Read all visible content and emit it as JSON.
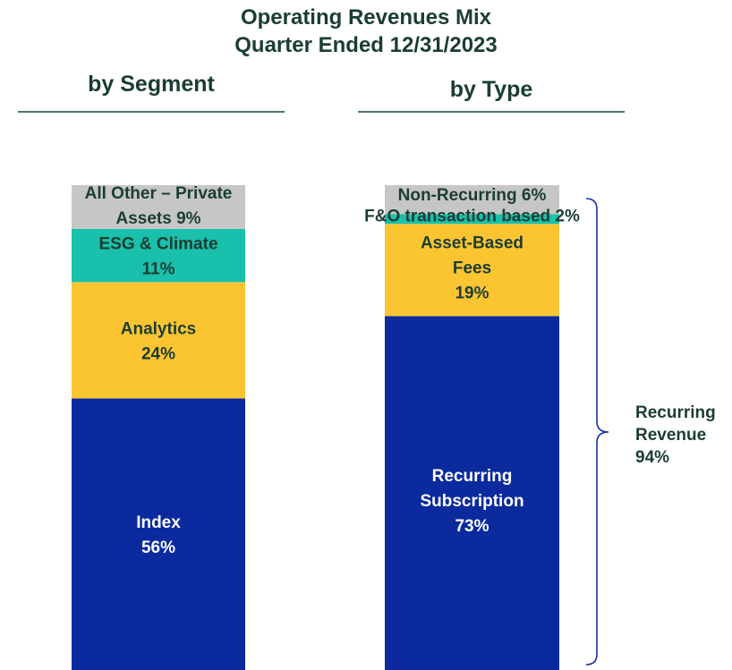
{
  "title": {
    "line1": "Operating Revenues Mix",
    "line2": "Quarter Ended 12/31/2023"
  },
  "panels": {
    "segment_heading": "by Segment",
    "type_heading": "by Type"
  },
  "brace_label": {
    "line1": "Recurring",
    "line2": "Revenue",
    "line3": "94%"
  },
  "colors": {
    "title_text": "#1b3d33",
    "rule": "#4f7565",
    "index": "#0a2a9e",
    "analytics": "#fbc531",
    "esg": "#19c0ab",
    "other": "#c6c6c6",
    "brace": "#1a2f9a"
  },
  "chart_data": [
    {
      "type": "bar",
      "stacked": true,
      "title": "by Segment",
      "unit": "%",
      "series": [
        {
          "name": "Index",
          "value": 56,
          "color": "#0a2a9e",
          "text_color": "#ffffff",
          "label_lines": [
            "Index",
            "56%"
          ]
        },
        {
          "name": "Analytics",
          "value": 24,
          "color": "#fbc531",
          "text_color": "#1b3d33",
          "label_lines": [
            "Analytics",
            "24%"
          ]
        },
        {
          "name": "ESG & Climate",
          "value": 11,
          "color": "#19c0ab",
          "text_color": "#1b3d33",
          "label_lines": [
            "ESG & Climate",
            "11%"
          ]
        },
        {
          "name": "All Other – Private Assets",
          "value": 9,
          "color": "#c6c6c6",
          "text_color": "#1b3d33",
          "label_lines": [
            "All Other – Private",
            "Assets 9%"
          ]
        }
      ]
    },
    {
      "type": "bar",
      "stacked": true,
      "title": "by Type",
      "unit": "%",
      "series": [
        {
          "name": "Recurring Subscription",
          "value": 73,
          "color": "#0a2a9e",
          "text_color": "#ffffff",
          "label_lines": [
            "Recurring",
            "Subscription",
            "73%"
          ]
        },
        {
          "name": "Asset-Based Fees",
          "value": 19,
          "color": "#fbc531",
          "text_color": "#1b3d33",
          "label_lines": [
            "Asset-Based",
            "Fees",
            "19%"
          ]
        },
        {
          "name": "F&O transaction based",
          "value": 2,
          "color": "#19c0ab",
          "text_color": "#1b3d33",
          "label_lines": [
            "F&O transaction based 2%"
          ]
        },
        {
          "name": "Non-Recurring",
          "value": 6,
          "color": "#c6c6c6",
          "text_color": "#1b3d33",
          "label_lines": [
            "Non-Recurring 6%"
          ]
        }
      ]
    }
  ]
}
